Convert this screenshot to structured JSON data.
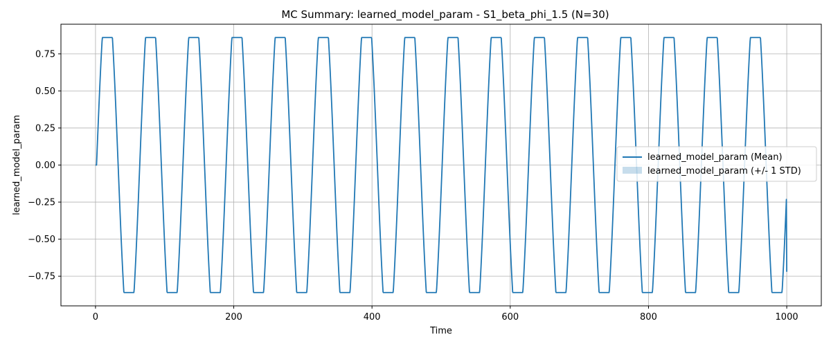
{
  "chart_data": {
    "type": "line",
    "title": "MC Summary: learned_model_param - S1_beta_phi_1.5 (N=30)",
    "xlabel": "Time",
    "ylabel": "learned_model_param",
    "xlim": [
      -50,
      1050
    ],
    "ylim": [
      -0.95,
      0.95
    ],
    "xticks": [
      0,
      200,
      400,
      600,
      800,
      1000
    ],
    "yticks": [
      -0.75,
      -0.5,
      -0.25,
      0.0,
      0.25,
      0.5,
      0.75
    ],
    "ytick_labels": [
      "−0.75",
      "−0.50",
      "−0.25",
      "0.00",
      "0.25",
      "0.50",
      "0.75"
    ],
    "grid": true,
    "legend_placement": "center-right",
    "series": [
      {
        "name": "learned_model_param (Mean)",
        "color": "#1f77b4",
        "kind": "line",
        "waveform": {
          "amplitude": 0.86,
          "period": 62.5,
          "clip": 0.86,
          "sharpness": 1.35,
          "start": [
            0,
            0.0
          ],
          "x_end": 1000,
          "y_end": -0.72
        }
      },
      {
        "name": "learned_model_param (+/- 1 STD)",
        "color": "#1f77b4",
        "kind": "band",
        "std": 0.0
      }
    ]
  }
}
